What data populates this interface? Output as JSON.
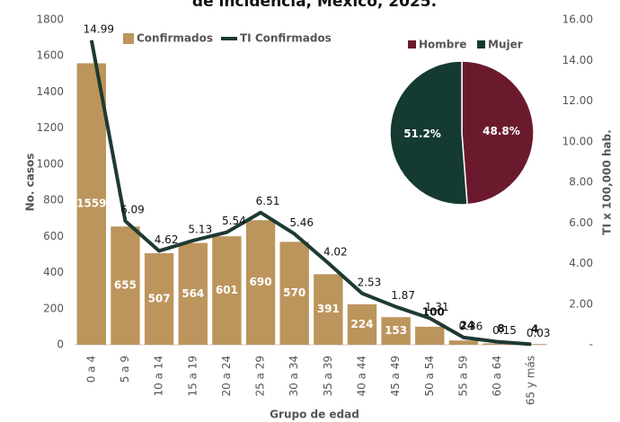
{
  "chart_data": [
    {
      "type": "bar",
      "title": "de incidencia, México, 2025.",
      "x_label": "Grupo de edad",
      "y_label": "No. casos",
      "y2_label": "TI x 100,000 hab.",
      "categories": [
        "0 a 4",
        "5 a 9",
        "10 a 14",
        "15 a 19",
        "20 a 24",
        "25 a 29",
        "30 a 34",
        "35 a 39",
        "40 a 44",
        "45 a 49",
        "50 a 54",
        "55 a 59",
        "60 a 64",
        "65 y más"
      ],
      "series": [
        {
          "name": "Confirmados",
          "type": "bar",
          "color": "#bc955c",
          "values": [
            1559,
            655,
            507,
            564,
            601,
            690,
            570,
            391,
            224,
            153,
            100,
            24,
            8,
            4
          ]
        },
        {
          "name": "TI Confirmados",
          "type": "line",
          "axis": "y2",
          "color": "#1d3a32",
          "values": [
            14.99,
            6.09,
            4.62,
            5.13,
            5.54,
            6.51,
            5.46,
            4.02,
            2.53,
            1.87,
            1.31,
            0.36,
            0.15,
            0.03
          ]
        }
      ],
      "ylim": [
        0,
        1800
      ],
      "yticks": [
        0,
        200,
        400,
        600,
        800,
        1000,
        1200,
        1400,
        1600,
        1800
      ],
      "y2lim": [
        0,
        16
      ],
      "y2ticks": [
        {
          "value": 0,
          "label": "-"
        },
        {
          "value": 2,
          "label": "2.00"
        },
        {
          "value": 4,
          "label": "4.00"
        },
        {
          "value": 6,
          "label": "6.00"
        },
        {
          "value": 8,
          "label": "8.00"
        },
        {
          "value": 10,
          "label": "10.00"
        },
        {
          "value": 12,
          "label": "12.00"
        },
        {
          "value": 14,
          "label": "14.00"
        },
        {
          "value": 16,
          "label": "16.00"
        }
      ],
      "legend": "top-left"
    },
    {
      "type": "pie",
      "categories": [
        "Hombre",
        "Mujer"
      ],
      "values": [
        48.8,
        51.2
      ],
      "value_labels": [
        "48.8%",
        "51.2%"
      ],
      "colors": [
        "#6b1a2e",
        "#143a31"
      ],
      "legend": "top"
    }
  ]
}
